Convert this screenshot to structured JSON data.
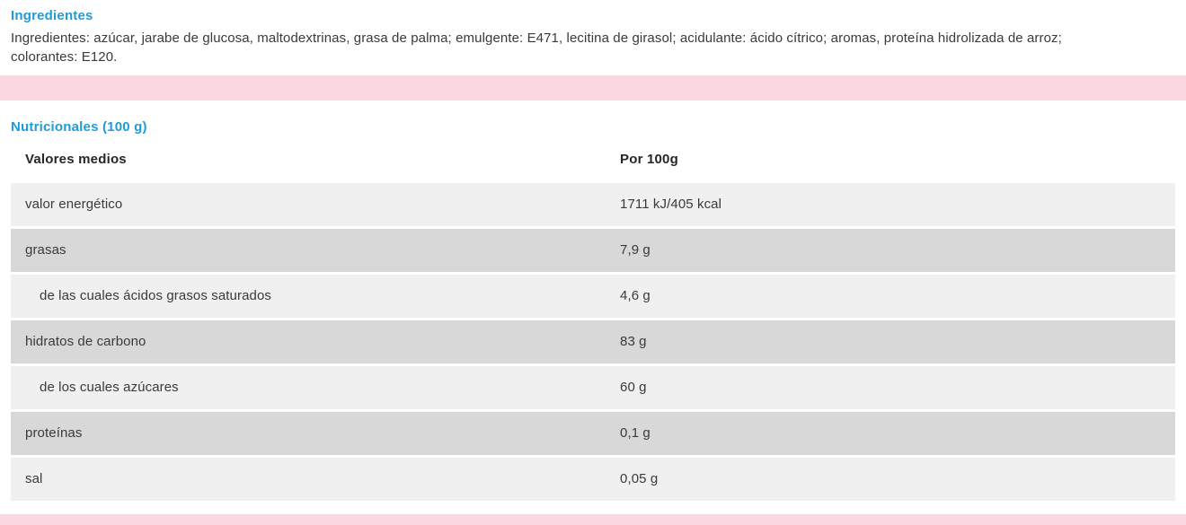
{
  "colors": {
    "accent_blue": "#1f9cd8",
    "pink_band": "#fbd8e1",
    "row_light": "#f0f0f0",
    "row_dark": "#d8d8d8",
    "text_dark": "#3a3a3a"
  },
  "ingredients": {
    "title": "Ingredientes",
    "line1": "Ingredientes: azúcar, jarabe de glucosa, maltodextrinas, grasa de palma; emulgente: E471, lecitina de girasol; acidulante: ácido cítrico; aromas, proteína hidrolizada de arroz;",
    "line2": "colorantes: E120."
  },
  "nutrition": {
    "title": "Nutricionales (100 g)",
    "col1_header": "Valores medios",
    "col2_header": "Por 100g",
    "rows": [
      {
        "label": "valor energético",
        "value": "1711 kJ/405 kcal"
      },
      {
        "label": "grasas",
        "value": "7,9 g"
      },
      {
        "label": "de las cuales ácidos grasos saturados",
        "value": "4,6 g"
      },
      {
        "label": "hidratos de carbono",
        "value": "83 g"
      },
      {
        "label": "de los cuales azúcares",
        "value": "60 g"
      },
      {
        "label": "proteínas",
        "value": "0,1 g"
      },
      {
        "label": "sal",
        "value": "0,05 g"
      }
    ]
  }
}
